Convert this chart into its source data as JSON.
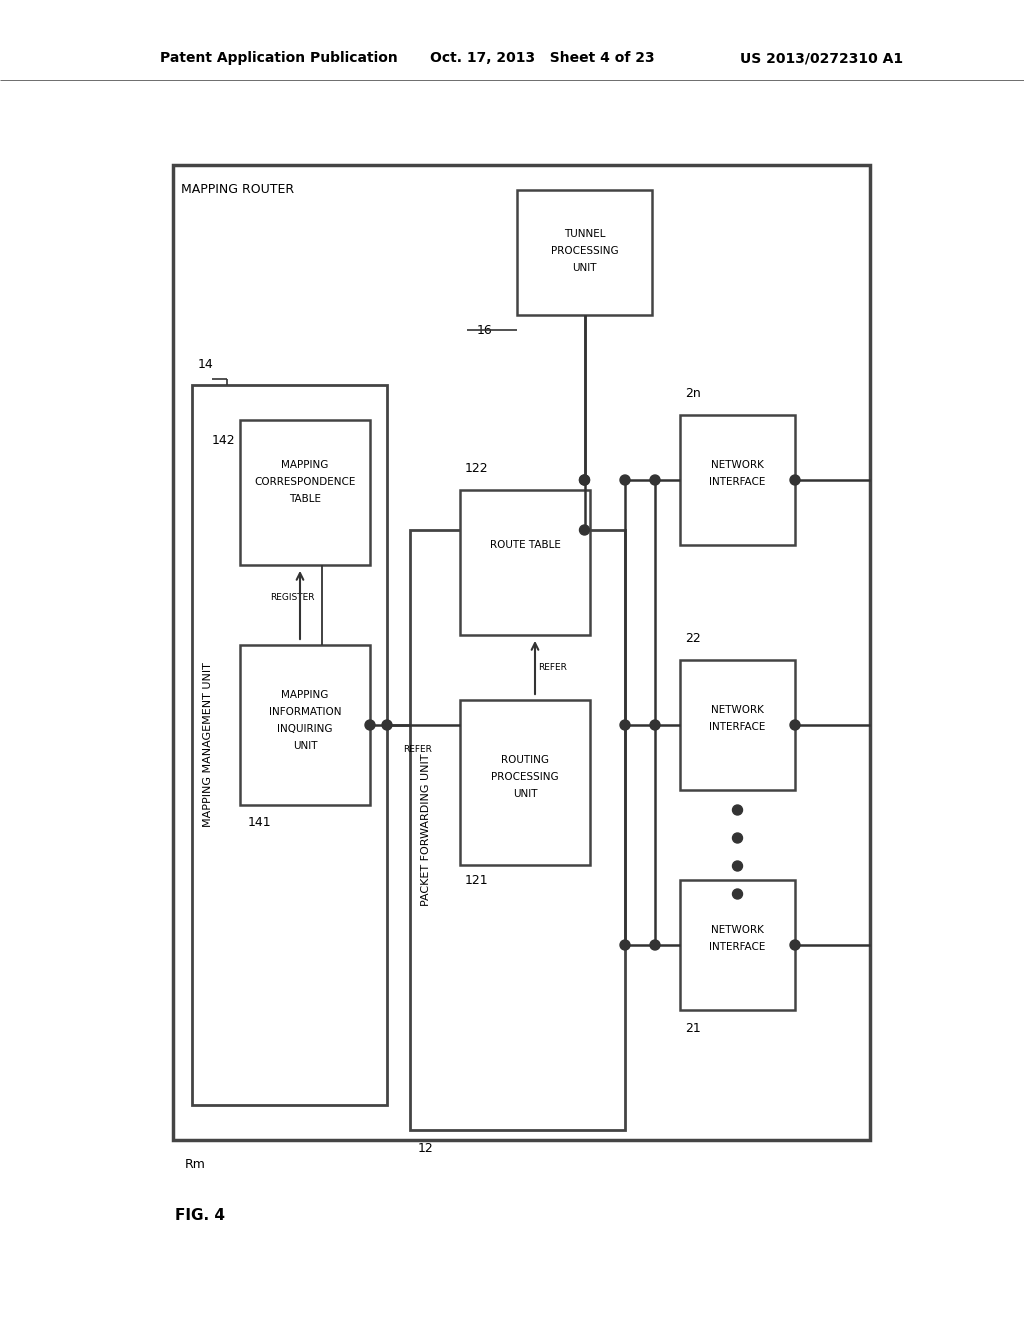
{
  "bg_color": "#ffffff",
  "header_left": "Patent Application Publication",
  "header_mid": "Oct. 17, 2013   Sheet 4 of 23",
  "header_right": "US 2013/0272310 A1"
}
